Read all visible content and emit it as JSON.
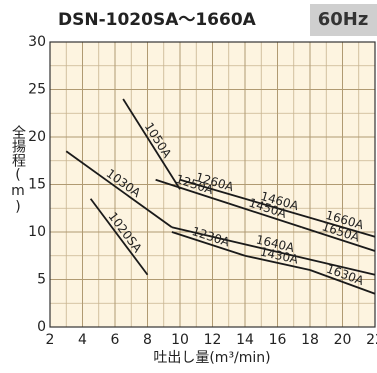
{
  "chart_data": {
    "type": "line",
    "title": "DSN-1020SA～1660A",
    "subtitle": "60Hz",
    "x_label": "吐出し量(m³/min)",
    "y_label": "全揚程(m)",
    "xlim": [
      2,
      22
    ],
    "xticks": [
      2,
      4,
      6,
      8,
      10,
      12,
      14,
      16,
      18,
      20,
      22
    ],
    "ylim": [
      0,
      30
    ],
    "yticks": [
      0,
      5,
      10,
      15,
      20,
      25,
      30
    ],
    "grid": true,
    "minor_grid": {
      "x": 1,
      "y": 2.5
    },
    "color": "#1a1a1a",
    "series": [
      {
        "name": "1020SA",
        "x": [
          4.5,
          8
        ],
        "values": [
          13.5,
          5.5
        ]
      },
      {
        "name": "1030A",
        "x": [
          3,
          9.5
        ],
        "values": [
          18.5,
          10.5
        ]
      },
      {
        "name": "1050A",
        "x": [
          6.5,
          10
        ],
        "values": [
          24,
          14.5
        ]
      },
      {
        "name": "1260A",
        "x": [
          10,
          14
        ],
        "values": [
          15.5,
          13.5
        ]
      },
      {
        "name": "1460A",
        "x": [
          14,
          18
        ],
        "values": [
          13.5,
          11.5
        ]
      },
      {
        "name": "1660A",
        "x": [
          18,
          22
        ],
        "values": [
          11.5,
          9.5
        ]
      },
      {
        "name": "1250A",
        "x": [
          8.5,
          13
        ],
        "values": [
          15.5,
          13
        ]
      },
      {
        "name": "1450A",
        "x": [
          13,
          17.5
        ],
        "values": [
          13,
          10.5
        ]
      },
      {
        "name": "1650A",
        "x": [
          17.5,
          22
        ],
        "values": [
          10.5,
          8
        ]
      },
      {
        "name": "1640A",
        "x": [
          9.5,
          22
        ],
        "values": [
          10.5,
          5.5
        ]
      },
      {
        "name": "1230A",
        "x": [
          9.5,
          14
        ],
        "values": [
          10,
          7.5
        ]
      },
      {
        "name": "1430A",
        "x": [
          14,
          18
        ],
        "values": [
          7.5,
          6
        ]
      },
      {
        "name": "1630A",
        "x": [
          18,
          22
        ],
        "values": [
          6,
          3.5
        ]
      }
    ]
  }
}
